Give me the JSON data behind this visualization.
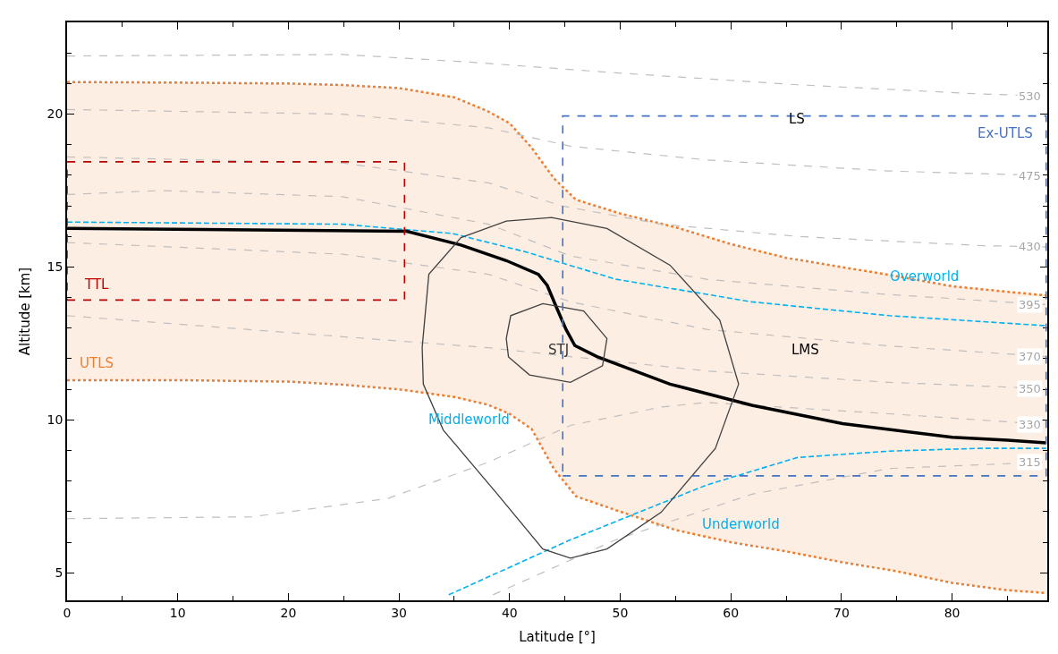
{
  "chart_data": {
    "type": "line",
    "xlabel": "Latitude [°]",
    "ylabel": "Altitude [km]",
    "xlim": [
      0,
      88.6
    ],
    "ylim": [
      4.1,
      23
    ],
    "xticks": [
      0,
      {
        "value": 5,
        "label": null
      },
      10,
      {
        "value": 15,
        "label": null
      },
      20,
      {
        "value": 25,
        "label": null
      },
      30,
      {
        "value": 35,
        "label": null
      },
      40,
      {
        "value": 45,
        "label": null
      },
      50,
      {
        "value": 55,
        "label": null
      },
      60,
      {
        "value": 65,
        "label": null
      },
      70,
      {
        "value": 75,
        "label": null
      },
      80,
      {
        "value": 85,
        "label": null
      }
    ],
    "yticks": [
      5,
      {
        "value": 6,
        "label": null
      },
      {
        "value": 7,
        "label": null
      },
      {
        "value": 8,
        "label": null
      },
      {
        "value": 9,
        "label": null
      },
      10,
      {
        "value": 11,
        "label": null
      },
      {
        "value": 12,
        "label": null
      },
      {
        "value": 13,
        "label": null
      },
      {
        "value": 14,
        "label": null
      },
      15,
      {
        "value": 16,
        "label": null
      },
      {
        "value": 17,
        "label": null
      },
      {
        "value": 18,
        "label": null
      },
      {
        "value": 19,
        "label": null
      },
      20,
      {
        "value": 21,
        "label": null
      },
      {
        "value": 22,
        "label": null
      }
    ],
    "series": [
      {
        "type": "line",
        "color": "#ed7d31",
        "line_style": "dotted",
        "x": [
          0,
          10,
          20,
          25,
          30,
          35,
          38,
          40,
          42,
          44,
          46,
          50,
          55,
          60,
          65,
          70,
          75,
          80,
          85,
          88.5
        ],
        "values": [
          11.3,
          11.3,
          11.25,
          11.15,
          11.0,
          10.75,
          10.5,
          10.2,
          9.7,
          8.4,
          7.5,
          7.0,
          6.4,
          6.0,
          5.7,
          5.35,
          5.05,
          4.67,
          4.43,
          4.34
        ]
      },
      {
        "type": "area",
        "color": "#ed7d31",
        "line_style": "dotted",
        "x": [
          0,
          10,
          20,
          25,
          30,
          35,
          38,
          40,
          42,
          44,
          46,
          50,
          55,
          60,
          65,
          70,
          75,
          80,
          85,
          88.5
        ],
        "values": [
          21.05,
          21.03,
          21.0,
          20.95,
          20.85,
          20.55,
          20.1,
          19.7,
          18.9,
          17.9,
          17.2,
          16.75,
          16.3,
          15.75,
          15.3,
          15.0,
          14.7,
          14.37,
          14.19,
          14.07
        ]
      },
      {
        "name": "530",
        "color": "#bfbfbf",
        "line_style": "dashed",
        "x": [
          0,
          24.9,
          36.4,
          49.6,
          66.0,
          82.5,
          88.5
        ],
        "values": [
          21.9,
          21.95,
          21.7,
          21.35,
          20.96,
          20.66,
          20.6
        ]
      },
      {
        "name": "475",
        "color": "#bfbfbf",
        "line_style": "dashed",
        "x": [
          0,
          24.9,
          38.1,
          45.5,
          57.8,
          74.3,
          88.5
        ],
        "values": [
          20.15,
          20.0,
          19.55,
          18.95,
          18.5,
          18.14,
          17.99
        ]
      },
      {
        "name": "430",
        "color": "#bfbfbf",
        "line_style": "dashed",
        "x": [
          0,
          24.9,
          38.1,
          44.7,
          53.7,
          66.0,
          82.5,
          88.5
        ],
        "values": [
          18.6,
          18.4,
          17.75,
          17.0,
          16.4,
          16.0,
          15.7,
          15.66
        ]
      },
      {
        "name": "395",
        "color": "#bfbfbf",
        "line_style": "dashed",
        "x": [
          0,
          8.5,
          24.9,
          38.1,
          45.5,
          57.8,
          74.3,
          88.5
        ],
        "values": [
          17.37,
          17.5,
          17.3,
          16.4,
          15.36,
          14.6,
          14.1,
          13.77
        ]
      },
      {
        "name": "370",
        "color": "#bfbfbf",
        "line_style": "dashed",
        "x": [
          0,
          24.9,
          38.1,
          45.5,
          57.8,
          74.3,
          88.5
        ],
        "values": [
          15.8,
          15.42,
          14.76,
          13.86,
          12.96,
          12.42,
          12.07
        ]
      },
      {
        "name": "350",
        "color": "#bfbfbf",
        "line_style": "dashed",
        "x": [
          0,
          24.9,
          38.1,
          45.5,
          57.8,
          74.3,
          88.5
        ],
        "values": [
          13.41,
          12.72,
          12.36,
          12.07,
          11.6,
          11.23,
          11.02
        ]
      },
      {
        "name": "330",
        "color": "#bfbfbf",
        "line_style": "dashed",
        "x": [
          0,
          16.7,
          29.0,
          38.1,
          45.5,
          53.7,
          57.8,
          74.3,
          88.5
        ],
        "values": [
          6.77,
          6.83,
          7.43,
          8.62,
          9.82,
          10.42,
          10.57,
          10.2,
          9.85
        ]
      },
      {
        "name": "315",
        "color": "#bfbfbf",
        "line_style": "dashed",
        "x": [
          38.5,
          49.6,
          61.9,
          74.3,
          88.5
        ],
        "values": [
          4.28,
          6.08,
          7.57,
          8.41,
          8.62
        ]
      },
      {
        "color": "#00b0f0",
        "line_style": "dashed",
        "x": [
          0,
          24.9,
          34.8,
          41.4,
          49.6,
          61.9,
          74.3,
          88.5
        ],
        "values": [
          16.47,
          16.4,
          16.1,
          15.5,
          14.6,
          13.86,
          13.41,
          13.08
        ]
      },
      {
        "color": "#00b0f0",
        "line_style": "dashed",
        "x": [
          34.5,
          45.5,
          57.8,
          66.0,
          74.3,
          82.5,
          88.5
        ],
        "values": [
          4.28,
          6.08,
          7.87,
          8.77,
          8.98,
          9.07,
          9.07
        ]
      },
      {
        "color": "#000000",
        "line_style": "solid",
        "x": [
          0,
          30.7,
          35.6,
          39.7,
          42.6,
          43.4,
          44.2,
          45.1,
          45.9,
          47.9,
          54.5,
          61.9,
          70.1,
          80.0,
          85.0,
          88.5
        ],
        "values": [
          16.26,
          16.17,
          15.72,
          15.21,
          14.76,
          14.4,
          13.71,
          12.96,
          12.43,
          12.07,
          11.17,
          10.48,
          9.88,
          9.43,
          9.34,
          9.25
        ]
      }
    ],
    "annotations": [
      "LS",
      "Ex-UTLS",
      "TTL",
      "UTLS",
      "Overworld",
      "LMS",
      "STJ",
      "Middleworld",
      "Underworld"
    ]
  }
}
